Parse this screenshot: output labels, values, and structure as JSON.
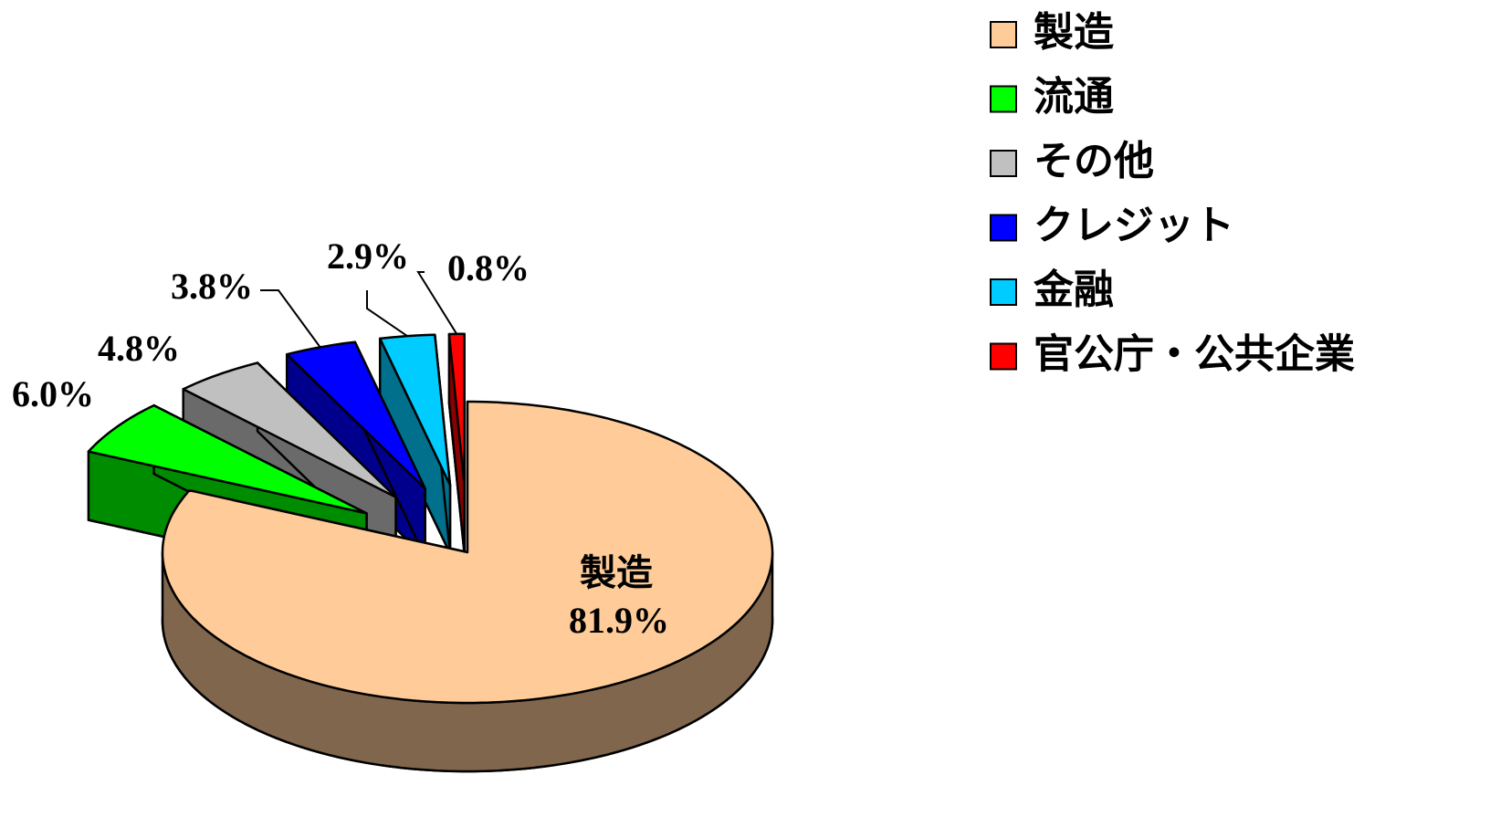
{
  "chart_data": {
    "type": "pie",
    "categories": [
      "製造",
      "流通",
      "その他",
      "クレジット",
      "金融",
      "官公庁・公共企業"
    ],
    "values": [
      81.9,
      6.0,
      4.8,
      3.8,
      2.9,
      0.8
    ],
    "value_labels": [
      "81.9%",
      "6.0%",
      "4.8%",
      "3.8%",
      "2.9%",
      "0.8%"
    ],
    "colors": [
      "#ffcc99",
      "#00ff00",
      "#c0c0c0",
      "#0000ff",
      "#00ccff",
      "#ff0000"
    ],
    "legend": "right"
  }
}
